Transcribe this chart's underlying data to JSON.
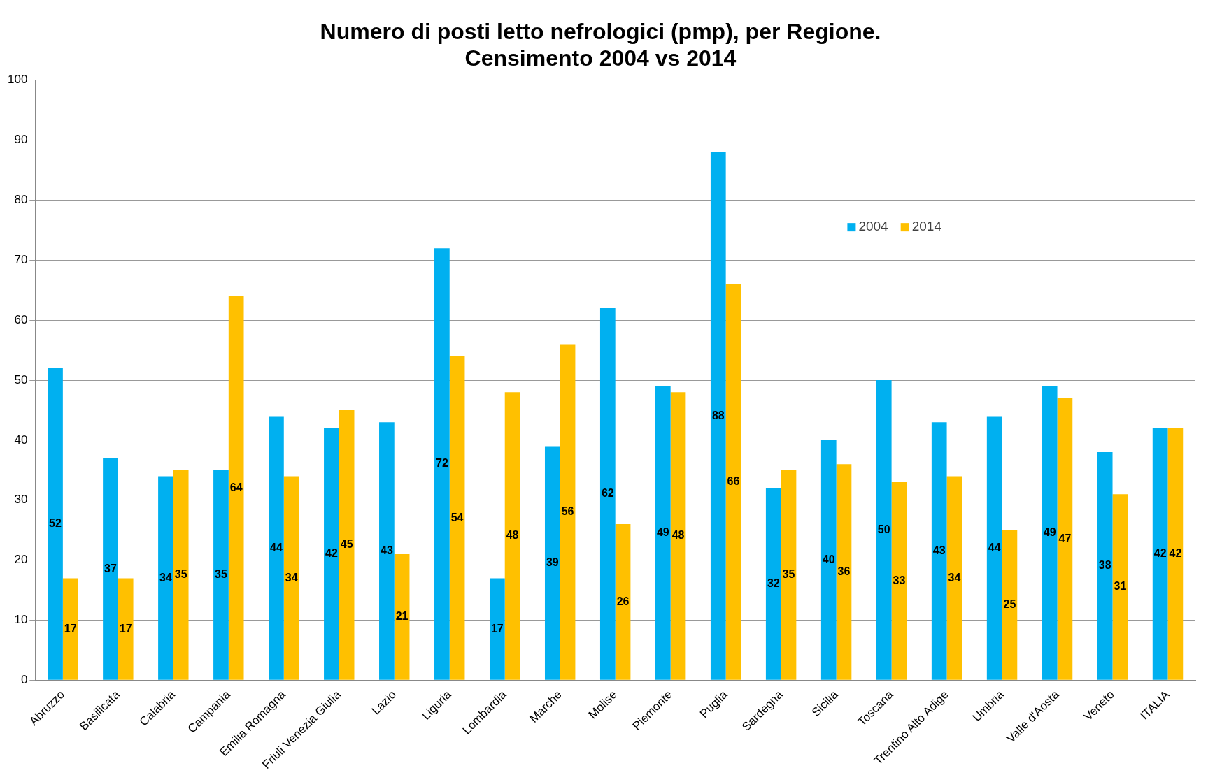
{
  "chart_data": {
    "type": "bar",
    "title": "Numero di posti letto nefrologici (pmp), per Regione.\nCensimento 2004 vs 2014",
    "categories": [
      "Abruzzo",
      "Basilicata",
      "Calabria",
      "Campania",
      "Emilia Romagna",
      "Friuli Venezia Giulia",
      "Lazio",
      "Liguria",
      "Lombardia",
      "Marche",
      "Molise",
      "Piemonte",
      "Puglia",
      "Sardegna",
      "Sicilia",
      "Toscana",
      "Trentino Alto Adige",
      "Umbria",
      "Valle d'Aosta",
      "Veneto",
      "ITALIA"
    ],
    "series": [
      {
        "name": "2004",
        "color": "#00b0f0",
        "values": [
          52,
          37,
          34,
          35,
          44,
          42,
          43,
          72,
          17,
          39,
          62,
          49,
          88,
          32,
          40,
          50,
          43,
          44,
          49,
          38,
          42
        ]
      },
      {
        "name": "2014",
        "color": "#ffc000",
        "values": [
          17,
          17,
          35,
          64,
          34,
          45,
          21,
          54,
          48,
          56,
          26,
          48,
          66,
          35,
          36,
          33,
          34,
          25,
          47,
          31,
          42
        ]
      }
    ],
    "ylim": [
      0,
      100
    ],
    "yticks": [
      0,
      10,
      20,
      30,
      40,
      50,
      60,
      70,
      80,
      90,
      100
    ],
    "grid": "y",
    "legend": "top right",
    "data_labels": true
  }
}
